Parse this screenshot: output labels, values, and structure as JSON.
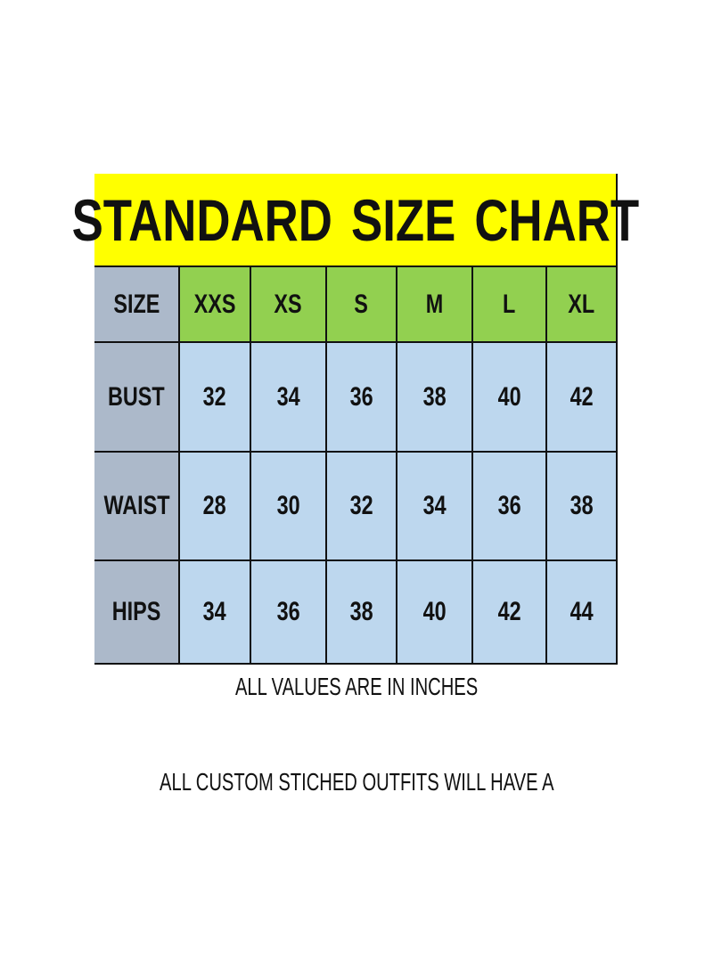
{
  "chart_data": {
    "type": "table",
    "title": "STANDARD  SIZE  CHART",
    "corner_label": "SIZE",
    "columns": [
      "XXS",
      "XS",
      "S",
      "M",
      "L",
      "XL"
    ],
    "rows": [
      {
        "label": "BUST",
        "values": [
          32,
          34,
          36,
          38,
          40,
          42
        ]
      },
      {
        "label": "WAIST",
        "values": [
          28,
          30,
          32,
          34,
          36,
          38
        ]
      },
      {
        "label": "HIPS",
        "values": [
          34,
          36,
          38,
          40,
          42,
          44
        ]
      }
    ],
    "colors": {
      "title": "#ffff00",
      "header": "#92d050",
      "row_label": "#acb9ca",
      "value": "#bdd7ee"
    }
  },
  "notes": {
    "units": "ALL VALUES ARE IN INCHES",
    "custom": "ALL CUSTOM STICHED OUTFITS WILL HAVE A"
  }
}
